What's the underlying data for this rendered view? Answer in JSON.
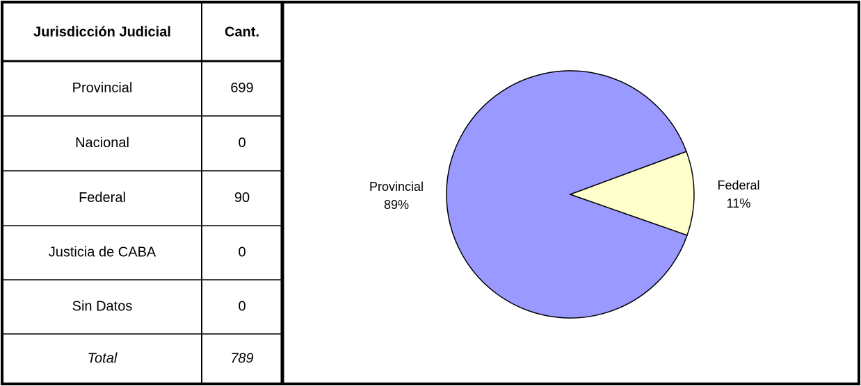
{
  "table": {
    "headers": [
      "Jurisdicción Judicial",
      "Cant."
    ],
    "rows": [
      [
        "Provincial",
        699
      ],
      [
        "Nacional",
        0
      ],
      [
        "Federal",
        90
      ],
      [
        "Justicia de CABA",
        0
      ],
      [
        "Sin Datos",
        0
      ]
    ],
    "total": [
      "Total",
      789
    ]
  },
  "chart_data": {
    "type": "pie",
    "categories": [
      "Provincial",
      "Federal"
    ],
    "values": [
      89,
      11
    ],
    "value_labels": [
      "89%",
      "11%"
    ],
    "colors": [
      "#9999ff",
      "#ffffcc"
    ]
  }
}
